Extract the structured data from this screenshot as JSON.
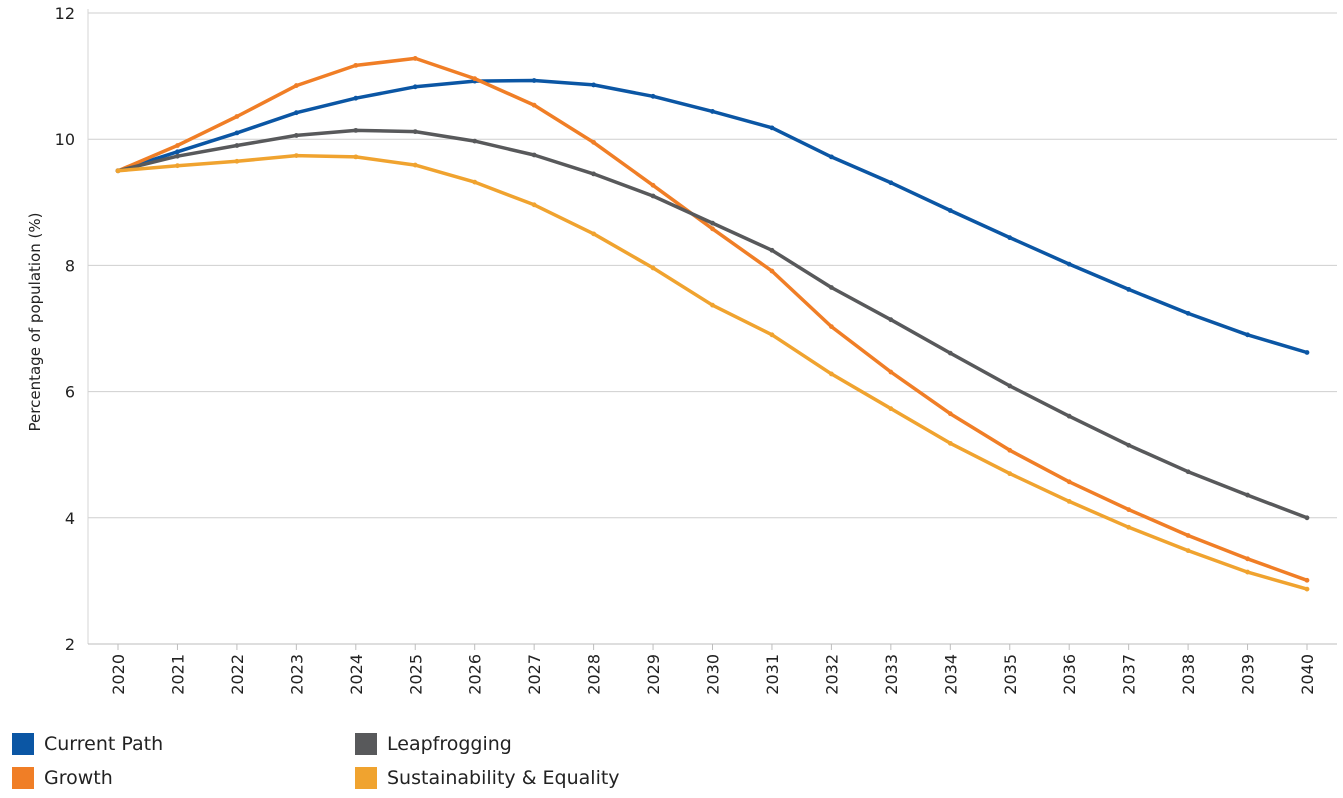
{
  "chart_data": {
    "type": "line",
    "title": "",
    "xlabel": "",
    "ylabel": "Percentage of population (%)",
    "ylim": [
      2,
      12
    ],
    "yticks": [
      2,
      4,
      6,
      8,
      10,
      12
    ],
    "grid": true,
    "legend_position": "bottom-left",
    "categories": [
      "2020",
      "2021",
      "2022",
      "2023",
      "2024",
      "2025",
      "2026",
      "2027",
      "2028",
      "2029",
      "2030",
      "2031",
      "2032",
      "2033",
      "2034",
      "2035",
      "2036",
      "2037",
      "2038",
      "2039",
      "2040"
    ],
    "series": [
      {
        "name": "Current Path",
        "color": "#0b56a4",
        "values": [
          9.5,
          9.8,
          10.1,
          10.42,
          10.65,
          10.83,
          10.92,
          10.93,
          10.86,
          10.68,
          10.44,
          10.18,
          9.72,
          9.31,
          8.87,
          8.44,
          8.02,
          7.62,
          7.24,
          6.9,
          6.62
        ]
      },
      {
        "name": "Growth",
        "color": "#f07e26",
        "values": [
          9.5,
          9.9,
          10.36,
          10.85,
          11.17,
          11.28,
          10.96,
          10.54,
          9.95,
          9.27,
          8.58,
          7.91,
          7.03,
          6.31,
          5.65,
          5.07,
          4.57,
          4.13,
          3.72,
          3.35,
          3.01
        ]
      },
      {
        "name": "Leapfrogging",
        "color": "#58595b",
        "values": [
          9.5,
          9.73,
          9.9,
          10.06,
          10.14,
          10.12,
          9.97,
          9.75,
          9.45,
          9.1,
          8.67,
          8.24,
          7.65,
          7.14,
          6.61,
          6.09,
          5.61,
          5.15,
          4.73,
          4.36,
          4.0
        ]
      },
      {
        "name": "Sustainability & Equality",
        "color": "#f0a32f",
        "values": [
          9.5,
          9.58,
          9.65,
          9.74,
          9.72,
          9.59,
          9.32,
          8.96,
          8.5,
          7.96,
          7.37,
          6.9,
          6.28,
          5.73,
          5.18,
          4.7,
          4.26,
          3.85,
          3.48,
          3.14,
          2.87
        ]
      }
    ]
  },
  "legend": [
    {
      "label": "Current Path",
      "color": "#0b56a4"
    },
    {
      "label": "Leapfrogging",
      "color": "#58595b"
    },
    {
      "label": "Growth",
      "color": "#f07e26"
    },
    {
      "label": "Sustainability & Equality",
      "color": "#f0a32f"
    }
  ]
}
